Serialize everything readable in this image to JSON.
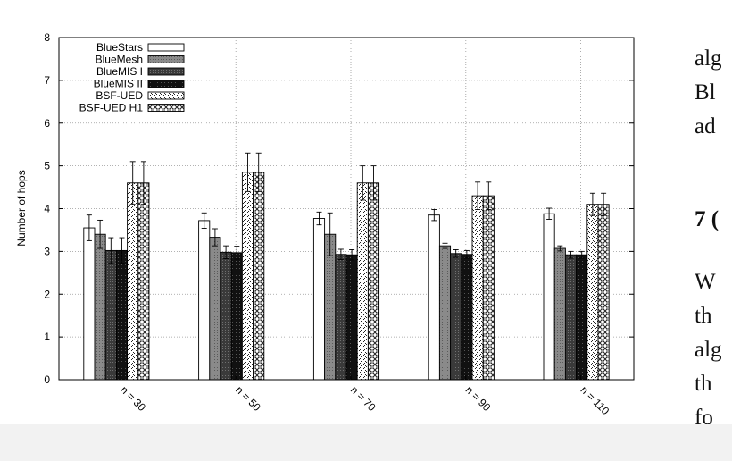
{
  "chart_data": {
    "type": "bar",
    "ylabel": "Number of hops",
    "xlabel": "",
    "ylim": [
      0,
      8
    ],
    "yticks": [
      0,
      1,
      2,
      3,
      4,
      5,
      6,
      7,
      8
    ],
    "grid": true,
    "legend_position": "top-left",
    "categories": [
      "n = 30",
      "n = 50",
      "n = 70",
      "n = 90",
      "n = 110"
    ],
    "series": [
      {
        "name": "BlueStars",
        "pattern": "white",
        "values": [
          3.55,
          3.72,
          3.77,
          3.85,
          3.88
        ],
        "errors": [
          0.3,
          0.18,
          0.15,
          0.13,
          0.13
        ]
      },
      {
        "name": "BlueMesh",
        "pattern": "gray",
        "values": [
          3.4,
          3.33,
          3.4,
          3.13,
          3.07
        ],
        "errors": [
          0.33,
          0.2,
          0.5,
          0.06,
          0.06
        ]
      },
      {
        "name": "BlueMIS I",
        "pattern": "dark-dotted",
        "values": [
          3.02,
          2.98,
          2.93,
          2.95,
          2.92
        ],
        "errors": [
          0.3,
          0.15,
          0.12,
          0.09,
          0.08
        ]
      },
      {
        "name": "BlueMIS II",
        "pattern": "black-dotted",
        "values": [
          3.02,
          2.97,
          2.92,
          2.93,
          2.92
        ],
        "errors": [
          0.3,
          0.15,
          0.12,
          0.09,
          0.08
        ]
      },
      {
        "name": "BSF-UED",
        "pattern": "sparse-dots",
        "values": [
          4.6,
          4.85,
          4.6,
          4.3,
          4.1
        ],
        "errors": [
          0.5,
          0.45,
          0.4,
          0.32,
          0.26
        ]
      },
      {
        "name": "BSF-UED H1",
        "pattern": "crosshatch",
        "values": [
          4.6,
          4.85,
          4.6,
          4.3,
          4.1
        ],
        "errors": [
          0.5,
          0.45,
          0.4,
          0.32,
          0.26
        ]
      }
    ]
  },
  "side_text": {
    "line1": "alg",
    "line2": "Bl",
    "line3": "ad",
    "heading": "7 (",
    "line4": "W",
    "line5": "th",
    "line6": "alg",
    "line7": "th",
    "line8": "fo"
  }
}
